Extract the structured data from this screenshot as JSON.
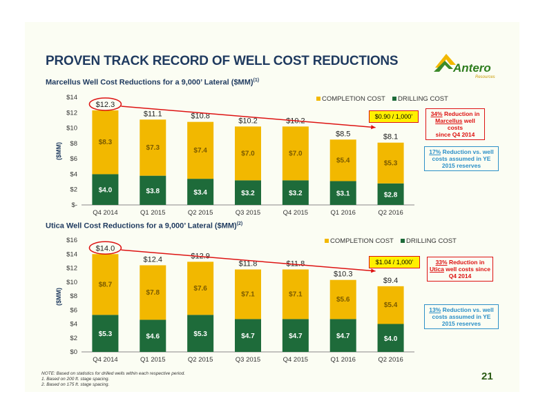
{
  "page": {
    "title": "PROVEN TRACK RECORD OF WELL COST REDUCTIONS",
    "page_number": "21",
    "logo_text": "Antero",
    "logo_subtext": "Resources",
    "notes": [
      "NOTE: Based on statistics for drilled wells within each respective period.",
      "1.  Based on 200 ft. stage spacing.",
      "2.  Based on 175 ft. stage spacing."
    ]
  },
  "colors": {
    "completion": "#f2b800",
    "drilling": "#1e6b3a",
    "red": "#dd1111",
    "blue": "#2b8fc7",
    "title": "#1f3a5f"
  },
  "charts_text": [
    {
      "subtitle": "Marcellus Well Cost Reductions for a 9,000’ Lateral ($MM)",
      "subtitle_sup": "(1)",
      "rate_label": "$0.90 / 1,000’",
      "callout_red": {
        "pct": "34%",
        "line1": " Reduction in",
        "name": "Marcellus",
        "line2": " well costs",
        "line3": "since Q4 2014"
      },
      "callout_blue": {
        "pct": "17%",
        "line1": " Reduction vs. well",
        "line2": "costs assumed in YE",
        "line3": "2015 reserves"
      }
    },
    {
      "subtitle": "Utica Well Cost Reductions for a 9,000’ Lateral ($MM)",
      "subtitle_sup": "(2)",
      "rate_label": "$1.04 / 1,000’",
      "callout_red": {
        "pct": "33%",
        "line1": " Reduction in",
        "name": "Utica",
        "line2": " well costs since",
        "line3": "Q4 2014"
      },
      "callout_blue": {
        "pct": "13%",
        "line1": " Reduction vs. well",
        "line2": "costs assumed in YE",
        "line3": "2015 reserves"
      }
    }
  ],
  "chart_data": [
    {
      "type": "bar",
      "stacked": true,
      "ylabel": "($MM)",
      "ylim": [
        0,
        14
      ],
      "ytick_labels": [
        "$-",
        "$2",
        "$4",
        "$6",
        "$8",
        "$10",
        "$12",
        "$14"
      ],
      "categories": [
        "Q4 2014",
        "Q1 2015",
        "Q2 2015",
        "Q3 2015",
        "Q4 2015",
        "Q1 2016",
        "Q2 2016"
      ],
      "totals": [
        "$12.3",
        "$11.1",
        "$10.8",
        "$10.2",
        "$10.2",
        "$8.5",
        "$8.1"
      ],
      "legend": "top-right",
      "series": [
        {
          "name": "DRILLING COST",
          "values": [
            4.0,
            3.8,
            3.4,
            3.2,
            3.2,
            3.1,
            2.8
          ],
          "labels": [
            "$4.0",
            "$3.8",
            "$3.4",
            "$3.2",
            "$3.2",
            "$3.1",
            "$2.8"
          ]
        },
        {
          "name": "COMPLETION COST",
          "values": [
            8.3,
            7.3,
            7.4,
            7.0,
            7.0,
            5.4,
            5.3
          ],
          "labels": [
            "$8.3",
            "$7.3",
            "$7.4",
            "$7.0",
            "$7.0",
            "$5.4",
            "$5.3"
          ]
        }
      ]
    },
    {
      "type": "bar",
      "stacked": true,
      "ylabel": "($MM)",
      "ylim": [
        0,
        16
      ],
      "ytick_labels": [
        "$0",
        "$2",
        "$4",
        "$6",
        "$8",
        "$10",
        "$12",
        "$14",
        "$16"
      ],
      "categories": [
        "Q4 2014",
        "Q1 2015",
        "Q2 2015",
        "Q3 2015",
        "Q4 2015",
        "Q1 2016",
        "Q2 2016"
      ],
      "totals": [
        "$14.0",
        "$12.4",
        "$12.9",
        "$11.8",
        "$11.8",
        "$10.3",
        "$9.4"
      ],
      "legend": "top-right",
      "series": [
        {
          "name": "DRILLING COST",
          "values": [
            5.3,
            4.6,
            5.3,
            4.7,
            4.7,
            4.7,
            4.0
          ],
          "labels": [
            "$5.3",
            "$4.6",
            "$5.3",
            "$4.7",
            "$4.7",
            "$4.7",
            "$4.0"
          ]
        },
        {
          "name": "COMPLETION COST",
          "values": [
            8.7,
            7.8,
            7.6,
            7.1,
            7.1,
            5.6,
            5.4
          ],
          "labels": [
            "$8.7",
            "$7.8",
            "$7.6",
            "$7.1",
            "$7.1",
            "$5.6",
            "$5.4"
          ]
        }
      ]
    }
  ]
}
